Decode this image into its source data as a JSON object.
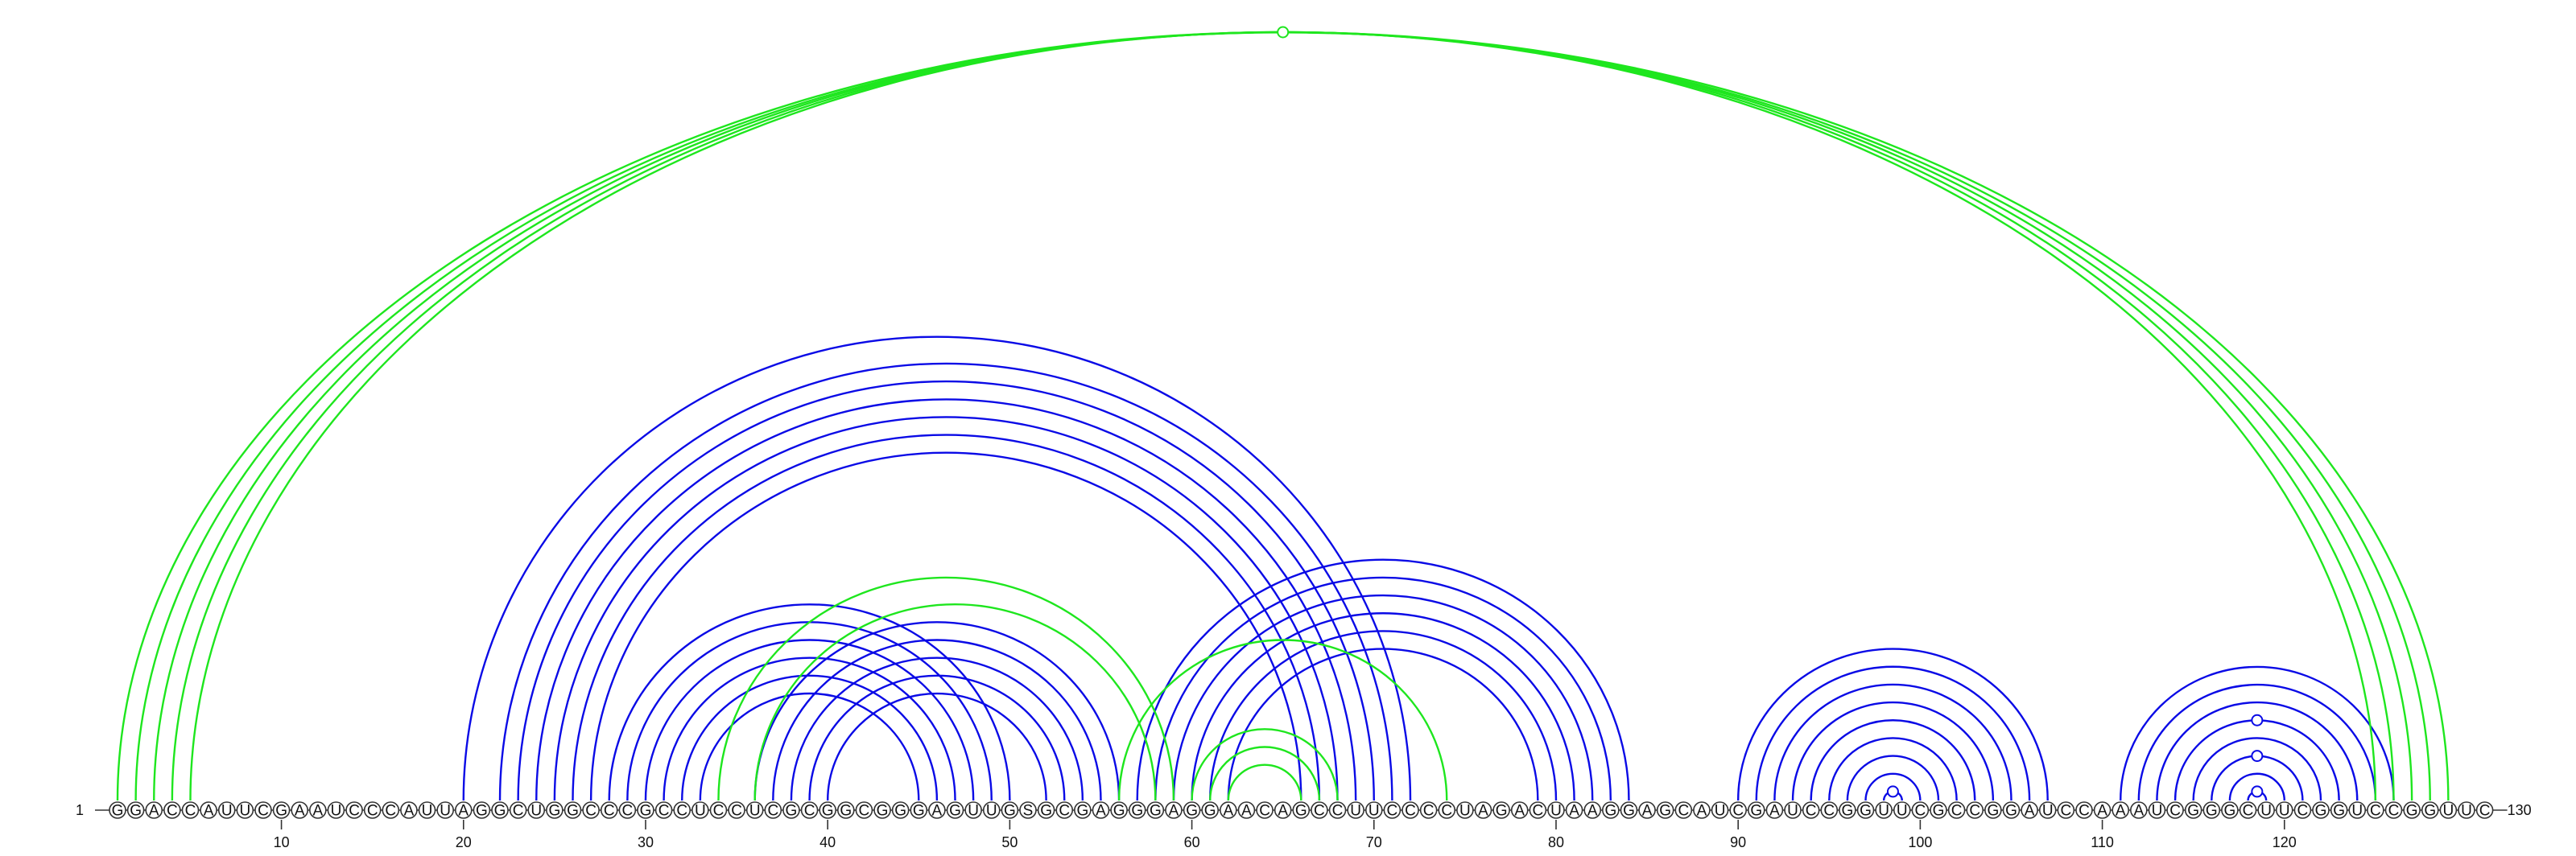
{
  "sequence": "GGACCAUUCGAAUCCCAUUAGGCUGGCCCGCCUCCUCGCGGCGGGAGUUGSGCGAGGGAGGAACAGCCUUCCCCUAGACUAAGGAGCAUCGAUCCGGUUCGCCGGAUCCAAAUCGGGCUUCGGUCCGGUUC",
  "start_label": "1",
  "end_label": "130",
  "ticks": [
    10,
    20,
    30,
    40,
    50,
    60,
    70,
    80,
    90,
    100,
    110,
    120
  ],
  "colors": {
    "blue": "#0a0ae6",
    "green": "#1ee61e"
  },
  "pairs": {
    "green": [
      [
        1,
        129
      ],
      [
        2,
        128
      ],
      [
        3,
        127
      ],
      [
        4,
        126
      ],
      [
        5,
        125
      ],
      [
        34,
        59
      ],
      [
        36,
        58
      ],
      [
        56,
        74
      ],
      [
        60,
        68
      ],
      [
        61,
        67
      ],
      [
        62,
        66
      ]
    ],
    "blue": [
      [
        20,
        72
      ],
      [
        22,
        71
      ],
      [
        23,
        70
      ],
      [
        24,
        69
      ],
      [
        25,
        68
      ],
      [
        26,
        67
      ],
      [
        27,
        66
      ],
      [
        28,
        50
      ],
      [
        29,
        49
      ],
      [
        30,
        48
      ],
      [
        31,
        47
      ],
      [
        32,
        46
      ],
      [
        33,
        45
      ],
      [
        36,
        56
      ],
      [
        37,
        55
      ],
      [
        38,
        54
      ],
      [
        39,
        53
      ],
      [
        40,
        52
      ],
      [
        57,
        84
      ],
      [
        58,
        83
      ],
      [
        59,
        82
      ],
      [
        60,
        81
      ],
      [
        61,
        80
      ],
      [
        62,
        79
      ],
      [
        90,
        107
      ],
      [
        91,
        106
      ],
      [
        92,
        105
      ],
      [
        93,
        104
      ],
      [
        94,
        103
      ],
      [
        95,
        102
      ],
      [
        96,
        101
      ],
      [
        97,
        100
      ],
      [
        98,
        99
      ],
      [
        111,
        126
      ],
      [
        112,
        125
      ],
      [
        113,
        124
      ],
      [
        114,
        123
      ],
      [
        115,
        122
      ],
      [
        116,
        121
      ],
      [
        117,
        120
      ],
      [
        118,
        119
      ]
    ]
  },
  "markers": [
    {
      "color": "green",
      "pair": [
        1,
        129
      ]
    },
    {
      "color": "blue",
      "pair": [
        98,
        99
      ]
    },
    {
      "color": "blue",
      "pair": [
        114,
        123
      ]
    },
    {
      "color": "blue",
      "pair": [
        116,
        121
      ]
    },
    {
      "color": "blue",
      "pair": [
        118,
        119
      ]
    }
  ]
}
